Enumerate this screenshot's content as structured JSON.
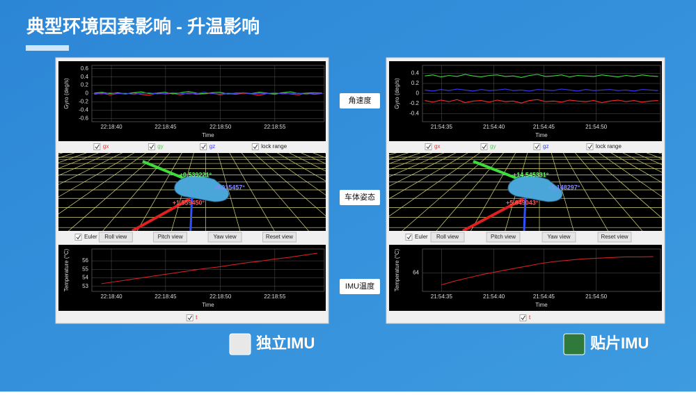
{
  "title": "典型环境因素影响 - 升温影响",
  "row_labels": [
    "角速度",
    "车体姿态",
    "IMU温度"
  ],
  "panels": [
    {
      "name": "独立IMU",
      "gyro": {
        "type": "line",
        "ylabel": "Gyro (deg/s)",
        "xlabel": "Time",
        "x_labels": [
          "22:18:40",
          "22:18:45",
          "22:18:50",
          "22:18:55"
        ],
        "ylim": [
          -0.68,
          0.68
        ],
        "yticks": [
          0.6,
          0.4,
          0.2,
          0,
          -0.2,
          -0.4,
          -0.6
        ],
        "series": [
          {
            "name": "gx",
            "color": "#ff2a2a",
            "values": [
              -0.02,
              0.01,
              -0.03,
              0,
              -0.01,
              0.02,
              -0.02,
              -0.04,
              0.01,
              -0.01,
              0,
              -0.03,
              0.02,
              -0.02,
              -0.01,
              0.01,
              -0.03,
              0,
              -0.02,
              0.01,
              -0.01,
              -0.04,
              0,
              -0.02,
              0.02,
              -0.01,
              -0.03,
              0.01,
              -0.02,
              0
            ]
          },
          {
            "name": "gy",
            "color": "#3cdc3c",
            "values": [
              0.01,
              0.03,
              0,
              0.02,
              -0.01,
              0.02,
              0.04,
              0,
              0.01,
              0.03,
              -0.01,
              0.02,
              0.05,
              0.01,
              0,
              0.02,
              0.03,
              -0.01,
              0.01,
              0.02,
              0,
              0.03,
              0.01,
              -0.01,
              0.02,
              0.04,
              0,
              0.01,
              0.02,
              0.01
            ]
          },
          {
            "name": "gz",
            "color": "#3a3aff",
            "values": [
              0,
              -0.01,
              0.02,
              0,
              0.01,
              -0.02,
              0.01,
              0.02,
              -0.01,
              0,
              0.02,
              0.01,
              -0.01,
              0,
              0.03,
              0,
              -0.02,
              0.01,
              0,
              0.02,
              -0.01,
              0.01,
              0,
              0.02,
              -0.01,
              0,
              0.01,
              -0.02,
              0.01,
              0
            ]
          }
        ]
      },
      "lock_label": "lock range",
      "attitude": {
        "labels": [
          "+0.539221°",
          "-0.015457°",
          "+1.559450°"
        ]
      },
      "buttons": [
        "Euler",
        "Roll view",
        "Pitch view",
        "Yaw view",
        "Reset view"
      ],
      "temperature": {
        "type": "line",
        "ylabel": "Temperature (°C)",
        "xlabel": "Time",
        "x_labels": [
          "22:18:40",
          "22:18:45",
          "22:18:50",
          "22:18:55"
        ],
        "ylim": [
          52.4,
          57.4
        ],
        "yticks": [
          56,
          55,
          54,
          53
        ],
        "series": [
          {
            "name": "t",
            "color": "#d02020",
            "values": [
              53.3,
              53.55,
              53.8,
              54.05,
              54.3,
              54.55,
              54.8,
              55.05,
              55.25,
              55.5,
              55.75,
              55.95,
              56.2,
              56.4,
              56.65,
              56.9
            ]
          }
        ]
      }
    },
    {
      "name": "贴片IMU",
      "gyro": {
        "type": "line",
        "ylabel": "Gyro (deg/s)",
        "xlabel": "Time",
        "x_labels": [
          "21:54:35",
          "21:54:40",
          "21:54:45",
          "21:54:50"
        ],
        "ylim": [
          -0.56,
          0.56
        ],
        "yticks": [
          0.4,
          0.2,
          0,
          -0.2,
          -0.4
        ],
        "series": [
          {
            "name": "gx",
            "color": "#ff2a2a",
            "values": [
              -0.14,
              -0.17,
              -0.13,
              -0.16,
              -0.12,
              -0.18,
              -0.15,
              -0.14,
              -0.17,
              -0.13,
              -0.16,
              -0.15,
              -0.19,
              -0.14,
              -0.12,
              -0.16,
              -0.15,
              -0.17,
              -0.13,
              -0.15,
              -0.16,
              -0.14,
              -0.18,
              -0.15,
              -0.13,
              -0.16,
              -0.14,
              -0.17,
              -0.15,
              -0.14
            ]
          },
          {
            "name": "gy",
            "color": "#3cdc3c",
            "values": [
              0.35,
              0.37,
              0.33,
              0.36,
              0.34,
              0.38,
              0.35,
              0.33,
              0.36,
              0.37,
              0.34,
              0.35,
              0.32,
              0.36,
              0.38,
              0.34,
              0.35,
              0.37,
              0.33,
              0.36,
              0.35,
              0.34,
              0.37,
              0.35,
              0.33,
              0.36,
              0.34,
              0.37,
              0.35,
              0.34
            ]
          },
          {
            "name": "gz",
            "color": "#3a3aff",
            "values": [
              0.07,
              0.05,
              0.08,
              0.06,
              0.09,
              0.07,
              0.05,
              0.08,
              0.06,
              0.07,
              0.09,
              0.06,
              0.07,
              0.05,
              0.08,
              0.07,
              0.06,
              0.09,
              0.07,
              0.05,
              0.08,
              0.06,
              0.07,
              0.08,
              0.06,
              0.07,
              0.05,
              0.08,
              0.07,
              0.06
            ]
          }
        ]
      },
      "lock_label": "lock range",
      "attitude": {
        "labels": [
          "+14.545331°",
          "+1.148297°",
          "+5.849043°"
        ]
      },
      "buttons": [
        "Euler",
        "Roll view",
        "Pitch view",
        "Yaw view",
        "Reset view"
      ],
      "temperature": {
        "type": "line",
        "ylabel": "Temperature (°C)",
        "xlabel": "Time",
        "x_labels": [
          "21:54:35",
          "21:54:40",
          "21:54:45",
          "21:54:50"
        ],
        "ylim": [
          62.6,
          65.8
        ],
        "yticks": [
          64
        ],
        "series": [
          {
            "name": "t",
            "color": "#d02020",
            "values": [
              63.1,
              63.4,
              63.65,
              63.9,
              64.1,
              64.3,
              64.5,
              64.7,
              64.85,
              64.95,
              65.05,
              65.1,
              65.15,
              65.2,
              65.2,
              65.22
            ]
          }
        ]
      }
    }
  ]
}
